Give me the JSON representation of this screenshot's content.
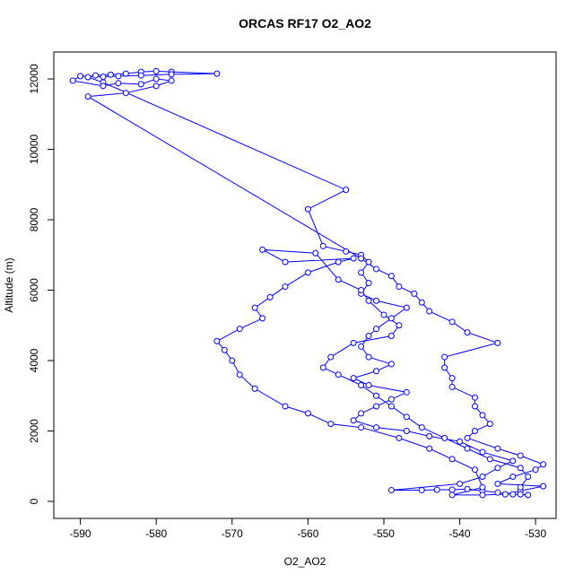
{
  "chart_data": {
    "type": "line",
    "title": "ORCAS RF17 O2_AO2",
    "x_label": "O2_AO2",
    "y_label": "Altitude (m)",
    "color": "#0000ff",
    "markers": true,
    "xlim": [
      -593.5,
      -527.3
    ],
    "ylim": [
      -484,
      12764
    ],
    "xticks": [
      -590,
      -580,
      -570,
      -560,
      -550,
      -540,
      -530
    ],
    "yticks": [
      0,
      2000,
      4000,
      6000,
      8000,
      10000,
      12000
    ],
    "x": [
      -531,
      -533,
      -535,
      -537,
      -539,
      -541,
      -543,
      -545,
      -549,
      -540,
      -537,
      -535,
      -533,
      -537,
      -540,
      -544,
      -547,
      -551,
      -554,
      -553,
      -551,
      -549,
      -547,
      -552,
      -554,
      -551,
      -549,
      -552,
      -553,
      -552,
      -551,
      -549,
      -547,
      -551,
      -553,
      -552,
      -553,
      -552,
      -553,
      -555,
      -558,
      -560,
      -555,
      -587,
      -589,
      -588,
      -586,
      -584,
      -582,
      -580,
      -578,
      -572,
      -578,
      -582,
      -585,
      -587,
      -590,
      -591,
      -587,
      -585,
      -582,
      -580,
      -578,
      -580,
      -584,
      -589,
      -553,
      -551,
      -549,
      -548,
      -546,
      -545,
      -544,
      -541,
      -539,
      -535,
      -542,
      -542,
      -541,
      -541,
      -538,
      -538,
      -537,
      -536,
      -538,
      -539,
      -535,
      -532,
      -529,
      -530,
      -533,
      -535,
      -529,
      -532,
      -534,
      -537,
      -541,
      -537,
      -538,
      -541,
      -544,
      -548,
      -553,
      -557,
      -560,
      -563,
      -567,
      -569,
      -570,
      -571,
      -572,
      -569,
      -566,
      -567,
      -565,
      -563,
      -560,
      -556,
      -554,
      -563,
      -566,
      -559,
      -556,
      -553,
      -552,
      -550,
      -548,
      -549,
      -554,
      -557,
      -558,
      -556,
      -553,
      -551,
      -549,
      -547,
      -545,
      -542,
      -539,
      -536,
      -532,
      -531,
      -532,
      -532,
      -531
    ],
    "values": [
      180,
      200,
      250,
      300,
      350,
      330,
      330,
      320,
      320,
      500,
      700,
      950,
      1150,
      1400,
      1700,
      1850,
      2000,
      2100,
      2300,
      2500,
      2700,
      2900,
      3100,
      3300,
      3500,
      3700,
      3900,
      4100,
      4400,
      4700,
      4900,
      5200,
      5500,
      5700,
      5900,
      6200,
      6500,
      6800,
      7000,
      7100,
      7250,
      8300,
      8850,
      11900,
      12050,
      12100,
      12120,
      12150,
      12200,
      12220,
      12200,
      12150,
      12130,
      12100,
      12080,
      12060,
      12080,
      11950,
      11800,
      11880,
      11850,
      12000,
      11950,
      11800,
      11600,
      11500,
      6900,
      6600,
      6400,
      6100,
      5900,
      5650,
      5400,
      5100,
      4800,
      4500,
      4100,
      3800,
      3500,
      3250,
      2950,
      2700,
      2450,
      2200,
      2000,
      1800,
      1500,
      1300,
      1050,
      900,
      700,
      500,
      430,
      300,
      200,
      180,
      180,
      400,
      900,
      1200,
      1500,
      1800,
      2100,
      2200,
      2500,
      2700,
      3200,
      3600,
      4000,
      4300,
      4550,
      4900,
      5200,
      5500,
      5800,
      6100,
      6500,
      6800,
      6900,
      6800,
      7150,
      7050,
      6300,
      6000,
      5700,
      5300,
      5000,
      4700,
      4500,
      4100,
      3800,
      3600,
      3300,
      3000,
      2700,
      2400,
      2100,
      1800,
      1500,
      1200,
      950,
      700,
      400,
      200,
      180
    ]
  }
}
